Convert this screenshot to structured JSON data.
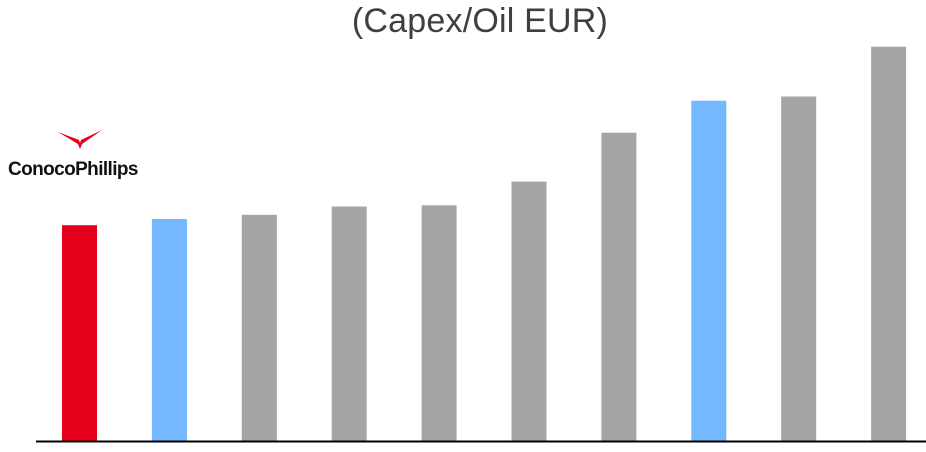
{
  "chart_data": {
    "type": "bar",
    "title": "(Capex/Oil EUR)",
    "xlabel": "",
    "ylabel": "",
    "categories": [
      "ConocoPhillips",
      "",
      "",
      "",
      "",
      "",
      "",
      "",
      "",
      ""
    ],
    "values": [
      52,
      53.5,
      54.5,
      56.5,
      56.8,
      62.5,
      74.3,
      82,
      83,
      95
    ],
    "ylim": [
      0,
      100
    ],
    "grid": false,
    "legend": "none",
    "colors": [
      "#e4001b",
      "#74b9ff",
      "#a5a5a5",
      "#a5a5a5",
      "#a5a5a5",
      "#a5a5a5",
      "#a5a5a5",
      "#74b9ff",
      "#a5a5a5",
      "#a5a5a5"
    ],
    "axis_color": "#000000"
  },
  "logo": {
    "text": "ConocoPhillips",
    "icon": "conocophillips-logo-icon",
    "mark_color": "#e4001b"
  }
}
